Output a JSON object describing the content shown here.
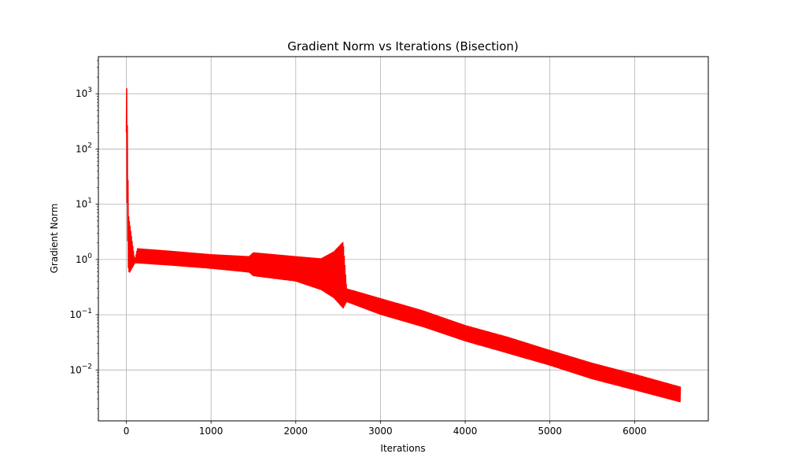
{
  "chart_data": {
    "type": "line",
    "title": "Gradient Norm vs Iterations (Bisection)",
    "xlabel": "Iterations",
    "ylabel": "Gradient Norm",
    "xlim": [
      -330,
      6870
    ],
    "ylim": [
      0.0012,
      4700
    ],
    "y_scale": "log",
    "grid": true,
    "x_ticks": [
      0,
      1000,
      2000,
      3000,
      4000,
      5000,
      6000
    ],
    "y_ticks": [
      {
        "value": 0.01,
        "base": "10",
        "exp": "−2"
      },
      {
        "value": 0.1,
        "base": "10",
        "exp": "−1"
      },
      {
        "value": 1,
        "base": "10",
        "exp": "0"
      },
      {
        "value": 10,
        "base": "10",
        "exp": "1"
      },
      {
        "value": 100,
        "base": "10",
        "exp": "2"
      },
      {
        "value": 1000,
        "base": "10",
        "exp": "3"
      }
    ],
    "series": [
      {
        "color": "#ff0000",
        "profile": [
          {
            "x": 0,
            "lo": 200,
            "hi": 2400
          },
          {
            "x": 10,
            "lo": 5,
            "hi": 480
          },
          {
            "x": 25,
            "lo": 0.6,
            "hi": 6.5
          },
          {
            "x": 40,
            "lo": 0.58,
            "hi": 4.5
          },
          {
            "x": 100,
            "lo": 0.85,
            "hi": 0.95
          },
          {
            "x": 130,
            "lo": 0.85,
            "hi": 1.6
          },
          {
            "x": 500,
            "lo": 0.78,
            "hi": 1.45
          },
          {
            "x": 1000,
            "lo": 0.68,
            "hi": 1.25
          },
          {
            "x": 1450,
            "lo": 0.58,
            "hi": 1.15
          },
          {
            "x": 1500,
            "lo": 0.5,
            "hi": 1.35
          },
          {
            "x": 2000,
            "lo": 0.4,
            "hi": 1.15
          },
          {
            "x": 2300,
            "lo": 0.28,
            "hi": 1.05
          },
          {
            "x": 2450,
            "lo": 0.2,
            "hi": 1.4
          },
          {
            "x": 2560,
            "lo": 0.13,
            "hi": 2.1
          },
          {
            "x": 2600,
            "lo": 0.17,
            "hi": 0.3
          },
          {
            "x": 3000,
            "lo": 0.1,
            "hi": 0.2
          },
          {
            "x": 3500,
            "lo": 0.06,
            "hi": 0.12
          },
          {
            "x": 4000,
            "lo": 0.033,
            "hi": 0.065
          },
          {
            "x": 4500,
            "lo": 0.02,
            "hi": 0.04
          },
          {
            "x": 5000,
            "lo": 0.012,
            "hi": 0.023
          },
          {
            "x": 5500,
            "lo": 0.0068,
            "hi": 0.0135
          },
          {
            "x": 6000,
            "lo": 0.0043,
            "hi": 0.0085
          },
          {
            "x": 6540,
            "lo": 0.0026,
            "hi": 0.005
          }
        ]
      }
    ]
  }
}
